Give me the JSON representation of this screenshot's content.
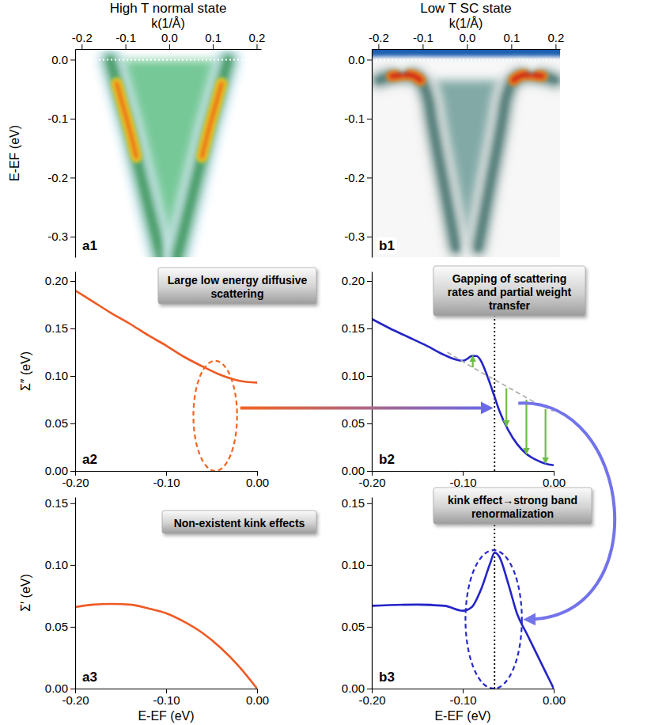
{
  "chart_data": [
    {
      "type": "image",
      "title": "High T normal state",
      "panel": "a1",
      "x_label": "k(1/Å)",
      "y_label": "E-EF (eV)",
      "xlim": [
        -0.215,
        0.21
      ],
      "ylim": [
        -0.335,
        0.018
      ],
      "xticks": [
        -0.2,
        -0.1,
        {
          "value": 0,
          "label": "0.0"
        },
        0.1,
        0.2
      ],
      "yticks": [
        {
          "value": 0,
          "label": "0.0"
        },
        -0.1,
        -0.2,
        -0.3
      ],
      "reference_y": 0,
      "color": "#5fbf86",
      "series": [
        {
          "x": [
            -0.135,
            -0.12,
            -0.105,
            -0.09,
            -0.075,
            -0.06,
            -0.045,
            -0.03,
            -0.018
          ],
          "values": [
            0.0,
            -0.04,
            -0.08,
            -0.12,
            -0.165,
            -0.21,
            -0.255,
            -0.3,
            -0.335
          ],
          "color": "#e8701e"
        },
        {
          "x": [
            0.135,
            0.12,
            0.105,
            0.09,
            0.075,
            0.06,
            0.045,
            0.03,
            0.018
          ],
          "values": [
            0.0,
            -0.04,
            -0.08,
            -0.12,
            -0.165,
            -0.21,
            -0.255,
            -0.3,
            -0.335
          ],
          "color": "#e8701e"
        }
      ]
    },
    {
      "type": "line",
      "panel": "a2",
      "y_label": "Σ″ (eV)",
      "annotation": "Large low energy diffusive scattering",
      "xlim": [
        -0.2,
        0
      ],
      "ylim": [
        0,
        0.21
      ],
      "xticks": [
        {
          "value": -0.2,
          "label": "-0.20"
        },
        {
          "value": -0.1,
          "label": "-0.10"
        },
        {
          "value": 0,
          "label": "0.00"
        }
      ],
      "yticks": [
        {
          "value": 0,
          "label": "0.00"
        },
        0.05,
        {
          "value": 0.1,
          "label": "0.10"
        },
        0.15,
        {
          "value": 0.2,
          "label": "0.20"
        }
      ],
      "series": [
        {
          "x": [
            -0.2,
            -0.18,
            -0.16,
            -0.14,
            -0.12,
            -0.1,
            -0.08,
            -0.06,
            -0.04,
            -0.02,
            0
          ],
          "values": [
            0.19,
            0.178,
            0.166,
            0.155,
            0.143,
            0.132,
            0.12,
            0.11,
            0.101,
            0.095,
            0.093
          ],
          "color": "#ee5a24",
          "line_style": "solid"
        }
      ],
      "highlight": {
        "x": [
          -0.07,
          -0.022
        ],
        "y": [
          0,
          0.116
        ],
        "color": "#f26522",
        "line_style": "dashed"
      }
    },
    {
      "type": "line",
      "panel": "a3",
      "y_label": "Σ′ (eV)",
      "x_label": "E-EF (eV)",
      "annotation": "Non-existent kink effects",
      "xlim": [
        -0.2,
        0
      ],
      "ylim": [
        0,
        0.155
      ],
      "xticks": [
        {
          "value": -0.2,
          "label": "-0.20"
        },
        {
          "value": -0.1,
          "label": "-0.10"
        },
        {
          "value": 0,
          "label": "0.00"
        }
      ],
      "yticks": [
        {
          "value": 0,
          "label": "0.00"
        },
        0.05,
        {
          "value": 0.1,
          "label": "0.10"
        },
        0.15
      ],
      "series": [
        {
          "x": [
            -0.2,
            -0.18,
            -0.16,
            -0.14,
            -0.12,
            -0.1,
            -0.08,
            -0.06,
            -0.04,
            -0.02,
            0
          ],
          "values": [
            0.066,
            0.068,
            0.0685,
            0.068,
            0.065,
            0.061,
            0.054,
            0.045,
            0.033,
            0.018,
            0
          ],
          "color": "#ee5a24",
          "line_style": "solid"
        }
      ]
    },
    {
      "type": "image",
      "title": "Low T SC state",
      "panel": "b1",
      "x_label": "k(1/Å)",
      "xlim": [
        -0.215,
        0.21
      ],
      "ylim": [
        -0.335,
        0.018
      ],
      "xticks": [
        -0.2,
        -0.1,
        {
          "value": 0,
          "label": "0.0"
        },
        0.1,
        0.2
      ],
      "yticks": [
        {
          "value": 0,
          "label": "0.0"
        },
        -0.1,
        -0.2,
        -0.3
      ],
      "reference_y": 0,
      "color": "#6e9c98",
      "series": [
        {
          "x": [
            -0.2,
            -0.17,
            -0.145,
            -0.125,
            -0.105,
            -0.09,
            -0.08,
            -0.068,
            -0.055,
            -0.04,
            -0.025
          ],
          "values": [
            -0.035,
            -0.028,
            -0.025,
            -0.026,
            -0.035,
            -0.06,
            -0.1,
            -0.15,
            -0.2,
            -0.26,
            -0.32
          ],
          "color": "#cc2418"
        },
        {
          "x": [
            0.2,
            0.17,
            0.145,
            0.125,
            0.105,
            0.09,
            0.08,
            0.068,
            0.055,
            0.04,
            0.025
          ],
          "values": [
            -0.035,
            -0.028,
            -0.025,
            -0.026,
            -0.035,
            -0.06,
            -0.1,
            -0.15,
            -0.2,
            -0.26,
            -0.32
          ],
          "color": "#cc2418"
        }
      ]
    },
    {
      "type": "line",
      "panel": "b2",
      "annotation": "Gapping of scattering rates and partial weight transfer",
      "xlim": [
        -0.2,
        0
      ],
      "ylim": [
        0,
        0.21
      ],
      "xticks": [
        {
          "value": -0.2,
          "label": "-0.20"
        },
        {
          "value": -0.1,
          "label": "-0.10"
        },
        {
          "value": 0,
          "label": "0.00"
        }
      ],
      "yticks": [
        {
          "value": 0,
          "label": "0.00"
        },
        0.05,
        {
          "value": 0.1,
          "label": "0.10"
        },
        0.15,
        {
          "value": 0.2,
          "label": "0.20"
        }
      ],
      "series": [
        {
          "x": [
            -0.2,
            -0.18,
            -0.16,
            -0.14,
            -0.12,
            -0.11,
            -0.1,
            -0.095,
            -0.09,
            -0.085,
            -0.08,
            -0.075,
            -0.07,
            -0.065,
            -0.06,
            -0.05,
            -0.04,
            -0.03,
            -0.02,
            -0.01,
            0
          ],
          "values": [
            0.16,
            0.15,
            0.141,
            0.132,
            0.122,
            0.118,
            0.116,
            0.118,
            0.121,
            0.121,
            0.116,
            0.105,
            0.092,
            0.078,
            0.064,
            0.043,
            0.028,
            0.018,
            0.012,
            0.008,
            0.006
          ],
          "color": "#2424c8",
          "line_style": "solid"
        },
        {
          "x": [
            -0.117,
            -0.08,
            -0.05,
            -0.02,
            0
          ],
          "values": [
            0.125,
            0.104,
            0.088,
            0.072,
            0.063
          ],
          "color": "#b0b0b0",
          "line_style": "dashed"
        }
      ],
      "reference_x": -0.065,
      "arrows": [
        {
          "x": -0.089,
          "from": 0.109,
          "to": 0.119,
          "color": "#6dbd45"
        },
        {
          "x": -0.052,
          "from": 0.087,
          "to": 0.049,
          "color": "#6dbd45"
        },
        {
          "x": -0.03,
          "from": 0.075,
          "to": 0.02,
          "color": "#6dbd45"
        },
        {
          "x": -0.009,
          "from": 0.065,
          "to": 0.01,
          "color": "#6dbd45"
        }
      ]
    },
    {
      "type": "line",
      "panel": "b3",
      "x_label": "E-EF (eV)",
      "annotation": "kink effect→strong band renormalization",
      "xlim": [
        -0.2,
        0
      ],
      "ylim": [
        0,
        0.155
      ],
      "xticks": [
        {
          "value": -0.2,
          "label": "-0.20"
        },
        {
          "value": -0.1,
          "label": "-0.10"
        },
        {
          "value": 0,
          "label": "0.00"
        }
      ],
      "yticks": [
        {
          "value": 0,
          "label": "0.00"
        },
        0.05,
        {
          "value": 0.1,
          "label": "0.10"
        },
        0.15
      ],
      "series": [
        {
          "x": [
            -0.2,
            -0.15,
            -0.12,
            -0.1,
            -0.09,
            -0.08,
            -0.07,
            -0.065,
            -0.06,
            -0.05,
            -0.04,
            -0.03,
            -0.02,
            -0.01,
            0
          ],
          "values": [
            0.067,
            0.068,
            0.067,
            0.063,
            0.066,
            0.08,
            0.101,
            0.11,
            0.107,
            0.085,
            0.06,
            0.045,
            0.03,
            0.015,
            0
          ],
          "color": "#2424c8",
          "line_style": "solid"
        }
      ],
      "reference_x": -0.065,
      "highlight": {
        "x": [
          -0.097,
          -0.035
        ],
        "y": [
          0,
          0.112
        ],
        "color": "#2a2acd",
        "line_style": "dashed"
      }
    }
  ]
}
